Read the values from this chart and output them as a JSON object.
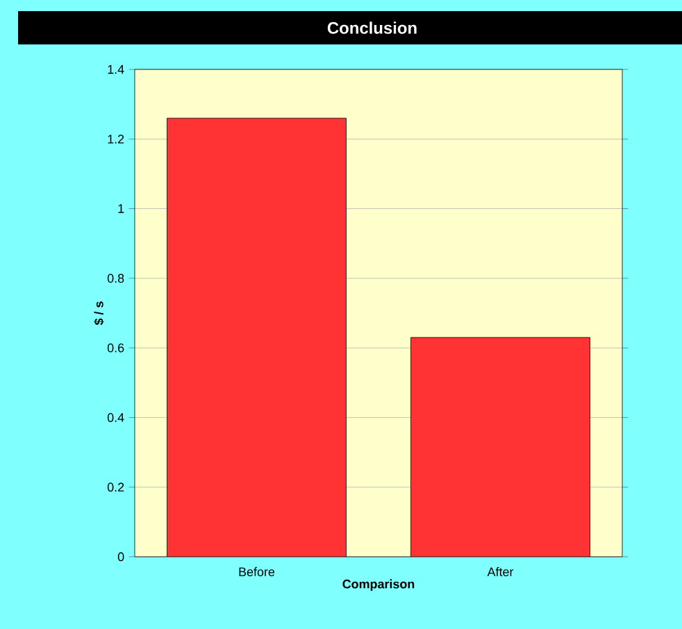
{
  "chart_data": {
    "type": "bar",
    "title": "Conclusion",
    "xlabel": "Comparison",
    "ylabel": "$ / s",
    "categories": [
      "Before",
      "After"
    ],
    "values": [
      1.26,
      0.63
    ],
    "color": "#ff3333",
    "ylim": [
      0,
      1.4
    ],
    "yticks": [
      0,
      0.2,
      0.4,
      0.6,
      0.8,
      1,
      1.2,
      1.4
    ],
    "grid": "y"
  }
}
